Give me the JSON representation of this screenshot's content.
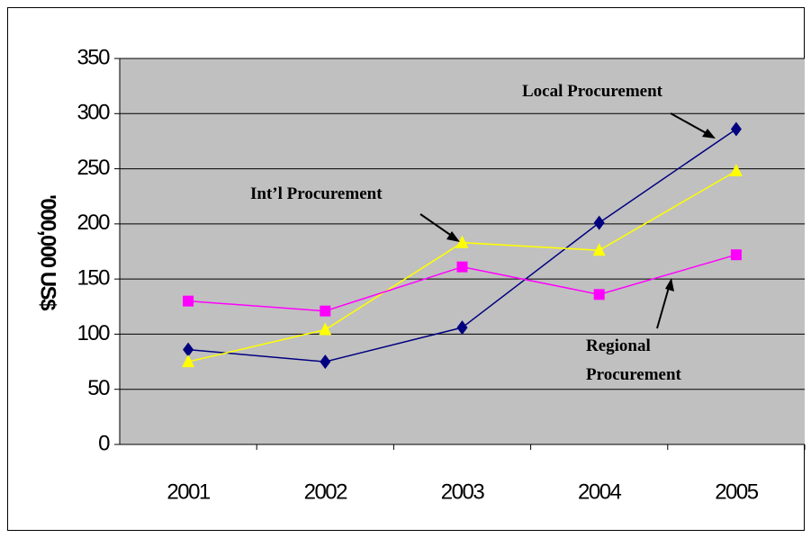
{
  "chart_data": {
    "type": "line",
    "y_label": "'000,000 US$",
    "categories": [
      "2001",
      "2002",
      "2003",
      "2004",
      "2005"
    ],
    "series": [
      {
        "name": "Local Procurement",
        "color": "#000080",
        "marker": "diamond",
        "values": [
          86,
          75,
          106,
          201,
          286
        ]
      },
      {
        "name": "Int’l Procurement",
        "color": "#ffff00",
        "marker": "triangle",
        "values": [
          75,
          104,
          183,
          176,
          248
        ]
      },
      {
        "name": "Regional Procurement",
        "color": "#ff00ff",
        "marker": "square",
        "values": [
          130,
          121,
          161,
          136,
          172
        ]
      }
    ],
    "annotations": [
      [
        "Local Procurement"
      ],
      [
        "Int’l Procurement"
      ],
      [
        "Regional",
        "Procurement"
      ]
    ],
    "ylim": [
      0,
      350
    ],
    "yticks": [
      0,
      50,
      100,
      150,
      200,
      250,
      300,
      350
    ],
    "grid": true
  }
}
